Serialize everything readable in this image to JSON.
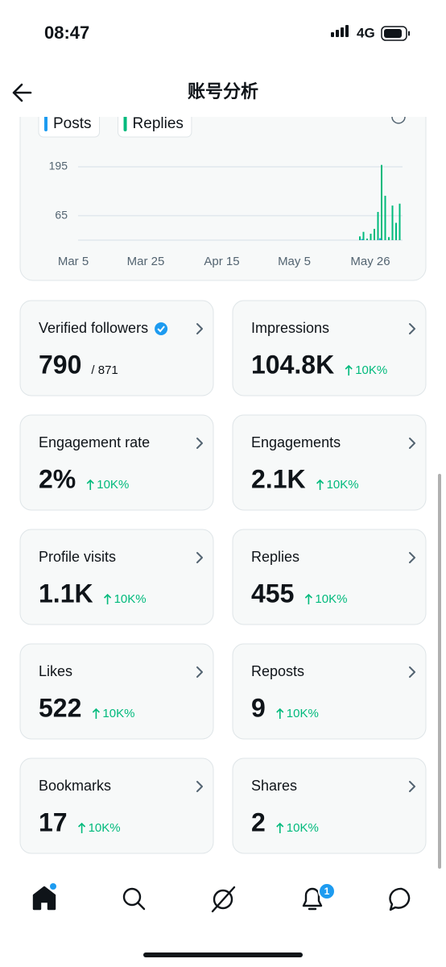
{
  "status_bar": {
    "time": "08:47",
    "network": "4G"
  },
  "header": {
    "title": "账号分析"
  },
  "chart_data": {
    "type": "bar",
    "categories": [
      "Mar 5",
      null,
      null,
      null,
      null,
      null,
      null,
      null,
      null,
      null,
      null,
      null,
      null,
      null,
      null,
      null,
      null,
      null,
      null,
      null,
      "Mar 25",
      null,
      null,
      null,
      null,
      null,
      null,
      null,
      null,
      null,
      null,
      null,
      null,
      null,
      null,
      null,
      null,
      null,
      null,
      null,
      null,
      "Apr 15",
      null,
      null,
      null,
      null,
      null,
      null,
      null,
      null,
      null,
      null,
      null,
      null,
      null,
      null,
      null,
      null,
      null,
      null,
      null,
      "May 5",
      null,
      null,
      null,
      null,
      null,
      null,
      null,
      null,
      null,
      null,
      null,
      null,
      null,
      null,
      null,
      null,
      null,
      null,
      null,
      null,
      "May 26",
      null,
      null,
      null,
      null,
      null,
      null,
      null,
      null
    ],
    "series": [
      {
        "name": "Posts",
        "color": "#1d9bf0",
        "values": [
          0,
          0,
          0,
          0,
          0,
          0,
          0,
          0,
          0,
          0,
          0,
          0,
          0,
          0,
          0,
          0,
          0,
          0,
          0,
          0,
          0,
          0,
          0,
          0,
          0,
          0,
          0,
          0,
          0,
          0,
          0,
          0,
          0,
          0,
          0,
          0,
          0,
          0,
          0,
          0,
          0,
          0,
          0,
          0,
          0,
          0,
          0,
          0,
          0,
          0,
          0,
          0,
          0,
          0,
          0,
          0,
          0,
          0,
          0,
          0,
          0,
          0,
          0,
          0,
          0,
          0,
          0,
          0,
          0,
          0,
          0,
          0,
          0,
          0,
          0,
          0,
          0,
          0,
          0,
          0,
          3,
          0,
          0,
          0,
          0,
          5,
          0,
          0,
          0,
          0,
          0
        ]
      },
      {
        "name": "Replies",
        "color": "#00ba7c",
        "values": [
          0,
          0,
          0,
          0,
          0,
          0,
          0,
          0,
          0,
          0,
          0,
          0,
          0,
          0,
          0,
          0,
          0,
          0,
          0,
          0,
          0,
          0,
          0,
          0,
          0,
          0,
          0,
          0,
          0,
          0,
          0,
          0,
          0,
          0,
          0,
          0,
          0,
          0,
          0,
          0,
          0,
          0,
          0,
          0,
          0,
          0,
          0,
          0,
          0,
          0,
          0,
          0,
          0,
          0,
          0,
          0,
          0,
          0,
          0,
          0,
          0,
          0,
          0,
          0,
          0,
          0,
          0,
          0,
          0,
          0,
          0,
          0,
          0,
          0,
          0,
          0,
          0,
          0,
          0,
          10,
          22,
          4,
          17,
          30,
          75,
          200,
          118,
          8,
          92,
          46,
          97
        ]
      }
    ],
    "ylim": [
      0,
      210
    ],
    "yticks": [
      65,
      195
    ],
    "grid": true
  },
  "metrics": [
    {
      "label": "Verified followers",
      "value": "790",
      "total": "/ 871"
    },
    {
      "label": "Impressions",
      "value": "104.8K",
      "change": "10K%"
    },
    {
      "label": "Engagement rate",
      "value": "2%",
      "change": "10K%"
    },
    {
      "label": "Engagements",
      "value": "2.1K",
      "change": "10K%"
    },
    {
      "label": "Profile visits",
      "value": "1.1K",
      "change": "10K%"
    },
    {
      "label": "Replies",
      "value": "455",
      "change": "10K%"
    },
    {
      "label": "Likes",
      "value": "522",
      "change": "10K%"
    },
    {
      "label": "Reposts",
      "value": "9",
      "change": "10K%"
    },
    {
      "label": "Bookmarks",
      "value": "17",
      "change": "10K%"
    },
    {
      "label": "Shares",
      "value": "2",
      "change": "10K%"
    }
  ],
  "nav": {
    "notification_count": "1"
  }
}
